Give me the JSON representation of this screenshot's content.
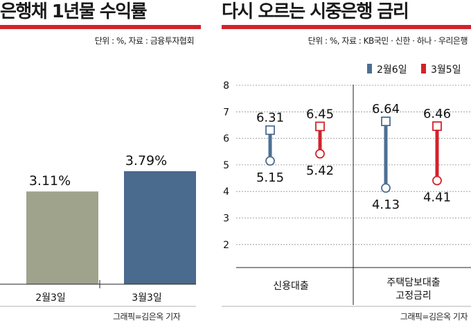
{
  "left": {
    "title": "은행채 1년물 수익률",
    "unit_source": "단위 : %, 자료 : 금융투자협회",
    "credit": "그래픽=김은옥 기자"
  },
  "right": {
    "title": "다시 오르는 시중은행 금리",
    "unit_source": "단위 : %, 자료 : KB국민 · 신한 · 하나 · 우리은행",
    "credit": "그래픽=김은옥 기자"
  },
  "colors": {
    "accent_red": "#d2232a",
    "bar_feb": "#a0a38c",
    "bar_mar": "#4a6a8e",
    "series_feb": "#4d6f93",
    "series_mar": "#d2232a"
  },
  "chart_data": [
    {
      "type": "bar",
      "categories": [
        "2월3일",
        "3월3일"
      ],
      "values": [
        3.11,
        3.79
      ],
      "value_labels": [
        "3.11%",
        "3.79%"
      ]
    },
    {
      "type": "dumbbell",
      "groups": [
        "신용대출",
        "주택담보대출\n고정금리"
      ],
      "group_line1": [
        "신용대출",
        "주택담보대출"
      ],
      "group_line2": [
        "",
        "고정금리"
      ],
      "series": [
        {
          "name": "2월6일",
          "high": [
            6.31,
            6.64
          ],
          "low": [
            5.15,
            4.13
          ]
        },
        {
          "name": "3월5일",
          "high": [
            6.45,
            6.46
          ],
          "low": [
            5.42,
            4.41
          ]
        }
      ],
      "yticks": [
        2,
        3,
        4,
        5,
        6,
        7,
        8
      ],
      "ylim": [
        1,
        8
      ],
      "legend_position": "top-right"
    }
  ]
}
